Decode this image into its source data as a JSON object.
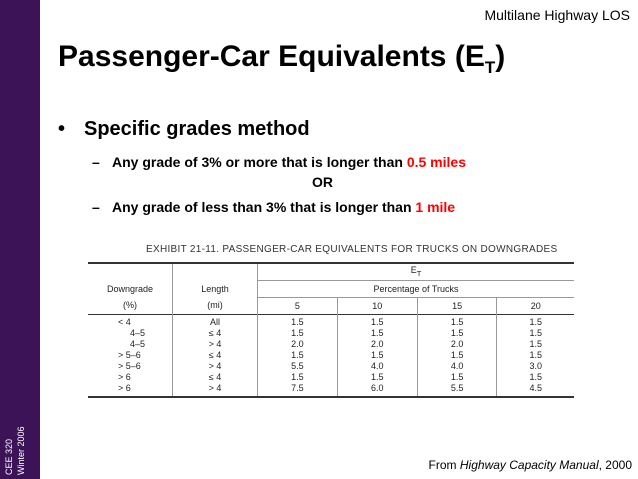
{
  "sidebar": {
    "course": "CEE 320",
    "term": "Winter 2006",
    "bg_color": "#3b1356"
  },
  "header": {
    "label": "Multilane Highway LOS"
  },
  "title": {
    "main": "Passenger-Car Equivalents (E",
    "sub": "T",
    "close": ")"
  },
  "bullet": {
    "text": "Specific grades method"
  },
  "subpoints": [
    {
      "text": "Any grade of 3% or more that is longer than ",
      "highlight": "0.5 miles"
    },
    {
      "text": "Any grade of less than 3% that is longer than ",
      "highlight": "1 mile"
    }
  ],
  "or_text": "OR",
  "exhibit": {
    "caption": "EXHIBIT 21-11.  PASSENGER-CAR EQUIVALENTS FOR TRUCKS ON DOWNGRADES",
    "et_label": "E",
    "et_sub": "T",
    "pct_label": "Percentage of Trucks",
    "downgrade_label": "Downgrade",
    "downgrade_unit": "(%)",
    "length_label": "Length",
    "length_unit": "(mi)",
    "columns": [
      "5",
      "10",
      "15",
      "20"
    ],
    "rows": [
      {
        "downgrade": "< 4",
        "length": "All",
        "values": [
          "1.5",
          "1.5",
          "1.5",
          "1.5"
        ]
      },
      {
        "downgrade": "4–5",
        "length": "≤ 4",
        "values": [
          "1.5",
          "1.5",
          "1.5",
          "1.5"
        ]
      },
      {
        "downgrade": "4–5",
        "length": "> 4",
        "values": [
          "2.0",
          "2.0",
          "2.0",
          "1.5"
        ]
      },
      {
        "downgrade": "> 5–6",
        "length": "≤ 4",
        "values": [
          "1.5",
          "1.5",
          "1.5",
          "1.5"
        ]
      },
      {
        "downgrade": "> 5–6",
        "length": "> 4",
        "values": [
          "5.5",
          "4.0",
          "4.0",
          "3.0"
        ]
      },
      {
        "downgrade": "> 6",
        "length": "≤ 4",
        "values": [
          "1.5",
          "1.5",
          "1.5",
          "1.5"
        ]
      },
      {
        "downgrade": "> 6",
        "length": "> 4",
        "values": [
          "7.5",
          "6.0",
          "5.5",
          "4.5"
        ]
      }
    ]
  },
  "source": {
    "prefix": "From ",
    "book": "Highway Capacity Manual",
    "suffix": ", 2000"
  }
}
